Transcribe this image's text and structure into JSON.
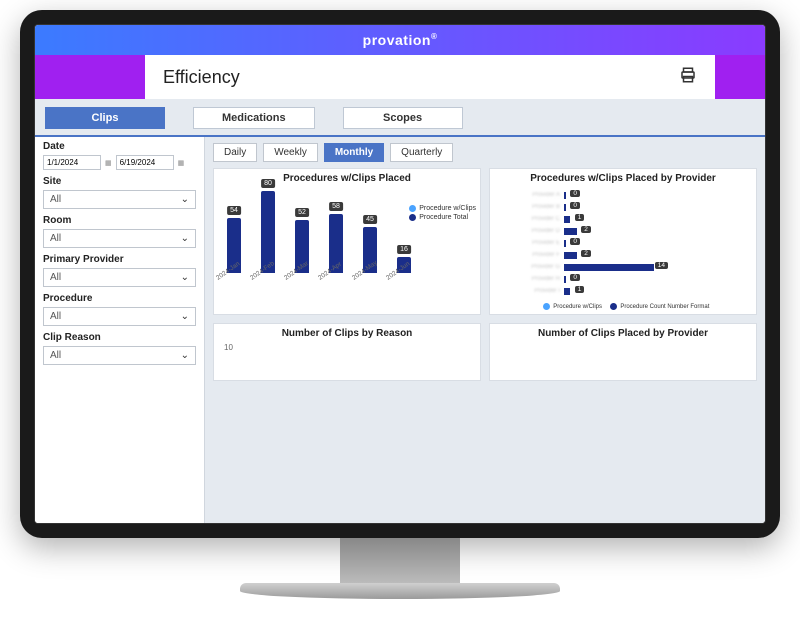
{
  "brand": "provation",
  "page_title": "Efficiency",
  "tabs": {
    "clips": "Clips",
    "medications": "Medications",
    "scopes": "Scopes",
    "active": "clips"
  },
  "filters": {
    "date_label": "Date",
    "date_start": "1/1/2024",
    "date_end": "6/19/2024",
    "site_label": "Site",
    "site_value": "All",
    "room_label": "Room",
    "room_value": "All",
    "primary_provider_label": "Primary Provider",
    "primary_provider_value": "All",
    "procedure_label": "Procedure",
    "procedure_value": "All",
    "clip_reason_label": "Clip Reason",
    "clip_reason_value": "All"
  },
  "periods": {
    "daily": "Daily",
    "weekly": "Weekly",
    "monthly": "Monthly",
    "quarterly": "Quarterly",
    "active": "monthly"
  },
  "chart1": {
    "type": "bar",
    "title": "Procedures w/Clips Placed",
    "categories": [
      "2024-Jan",
      "2024-Feb",
      "2024-Mar",
      "2024-Apr",
      "2024-May",
      "2024-Jun"
    ],
    "values": [
      54,
      80,
      52,
      58,
      45,
      16
    ],
    "max": 80,
    "bar_color": "#1a2e8a",
    "legend1_label": "Procedure w/Clips",
    "legend1_color": "#4aa3ff",
    "legend2_label": "Procedure Total",
    "legend2_color": "#1a2e8a"
  },
  "chart2": {
    "type": "hbar",
    "title": "Procedures w/Clips Placed by Provider",
    "rows": [
      {
        "label": "Provider A",
        "value": 0
      },
      {
        "label": "Provider B",
        "value": 0
      },
      {
        "label": "Provider C",
        "value": 1
      },
      {
        "label": "Provider D",
        "value": 2
      },
      {
        "label": "Provider E",
        "value": 0
      },
      {
        "label": "Provider F",
        "value": 2
      },
      {
        "label": "Provider G",
        "value": 14
      },
      {
        "label": "Provider H",
        "value": 0
      },
      {
        "label": "Provider I",
        "value": 1
      }
    ],
    "max": 14,
    "bar_color": "#1a2e8a",
    "legend1_label": "Procedure w/Clips",
    "legend1_color": "#4aa3ff",
    "legend2_label": "Procedure Count Number Format",
    "legend2_color": "#1a2e8a"
  },
  "chart3": {
    "title": "Number of Clips by Reason",
    "axis_stub": "10"
  },
  "chart4": {
    "title": "Number of Clips Placed by Provider"
  }
}
